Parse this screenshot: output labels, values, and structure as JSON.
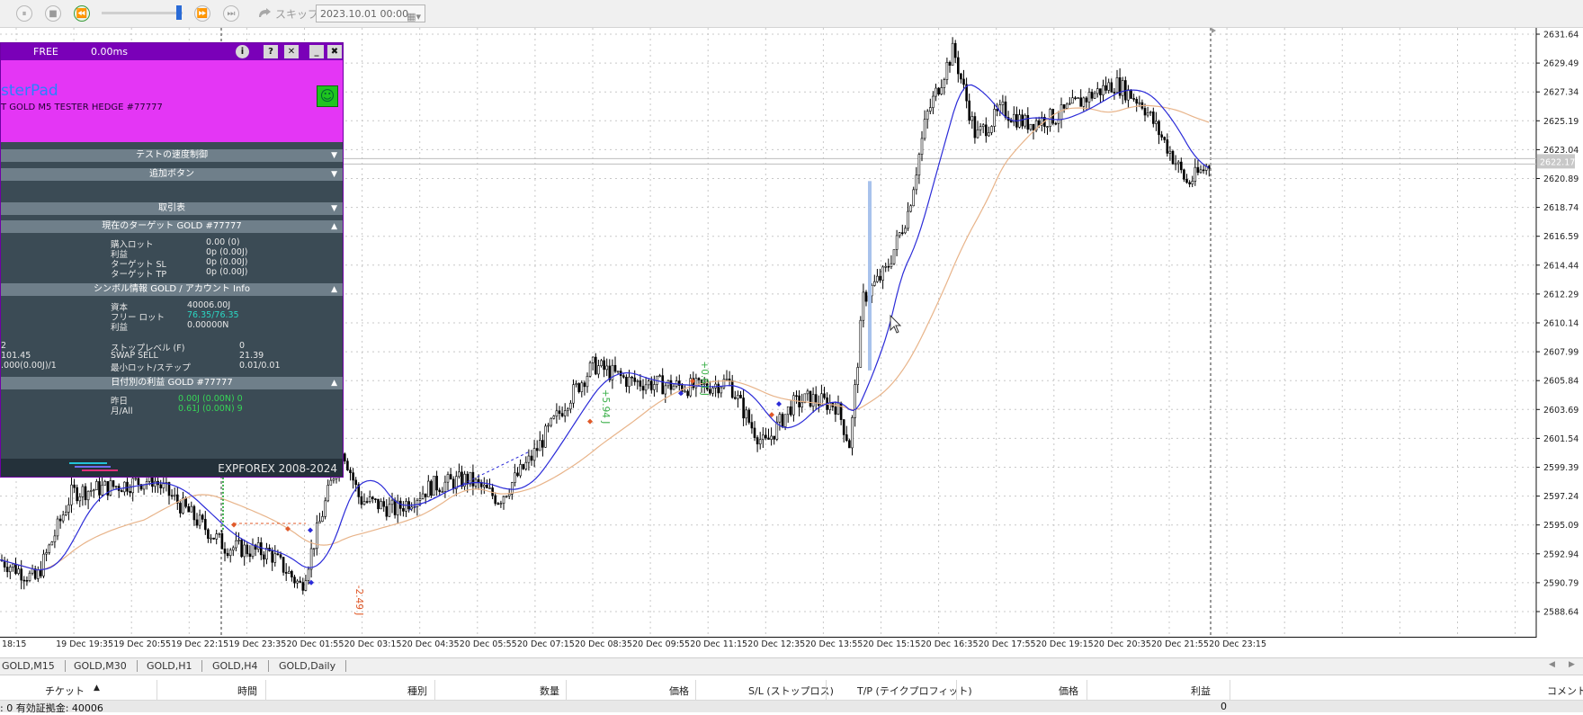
{
  "toolbar": {
    "skip_label": "スキップ",
    "date_value": "2023.10.01 00:00"
  },
  "panel": {
    "status": "FREE",
    "latency": "0.00ms",
    "title_fragment": "sterPad",
    "subtitle_fragment": "T GOLD M5 TESTER HEDGE  #77777",
    "brand": "EXPFOREX 2008-2024",
    "sections": {
      "test_control": "テストの速度制御",
      "extra_buttons": "追加ボタン",
      "trade_table": "取引表",
      "current_target": "現在のターゲット GOLD  #77777",
      "symbol_info": "シンボル情報 GOLD / アカウント Info",
      "daily_profit": "日付別の利益 GOLD  #77777"
    },
    "target_rows": [
      {
        "label": "購入ロット",
        "value": "0.00 (0)"
      },
      {
        "label": "利益",
        "value": "0p (0.00J)"
      },
      {
        "label": "ターゲット SL",
        "value": "0p (0.00J)"
      },
      {
        "label": "ターゲット TP",
        "value": "0p (0.00J)"
      }
    ],
    "account_rows": [
      {
        "label": "資本",
        "value": "40006.00J"
      },
      {
        "label": "フリー ロット",
        "value": "76.35/76.35"
      },
      {
        "label": "利益",
        "value": "0.00000N"
      }
    ],
    "symbol_rows": [
      {
        "left": "2",
        "label": "ストップレベル (F)",
        "value": "0"
      },
      {
        "left": "101.45",
        "label": "SWAP SELL",
        "value": "21.39"
      },
      {
        "left": ".000(0.00J)/1",
        "label": "最小ロット/ステップ",
        "value": "0.01/0.01"
      }
    ],
    "daily_rows": [
      {
        "label": "昨日",
        "value": "0.00J (0.00N) 0"
      },
      {
        "label": "月/All",
        "value": "0.61J (0.00N) 9"
      }
    ]
  },
  "chart": {
    "price_ticks": [
      "2631.64",
      "2629.49",
      "2627.34",
      "2625.19",
      "2623.04",
      "2620.89",
      "2618.74",
      "2616.59",
      "2614.44",
      "2612.29",
      "2610.14",
      "2607.99",
      "2605.84",
      "2603.69",
      "2601.54",
      "2599.39",
      "2597.24",
      "2595.09",
      "2592.94",
      "2590.79",
      "2588.64"
    ],
    "current_price_label": "2622.17",
    "time_labels": [
      "18:15",
      "19 Dec 19:35",
      "19 Dec 20:55",
      "19 Dec 22:15",
      "19 Dec 23:35",
      "20 Dec 01:55",
      "20 Dec 03:15",
      "20 Dec 04:35",
      "20 Dec 05:55",
      "20 Dec 07:15",
      "20 Dec 08:35",
      "20 Dec 09:55",
      "20 Dec 11:15",
      "20 Dec 12:35",
      "20 Dec 13:55",
      "20 Dec 15:15",
      "20 Dec 16:35",
      "20 Dec 17:55",
      "20 Dec 19:15",
      "20 Dec 20:35",
      "20 Dec 21:55",
      "20 Dec 23:15"
    ],
    "annotations": [
      {
        "text": "-2.49 J",
        "color": "#e05a2a"
      },
      {
        "text": "+5.94 J",
        "color": "#3cb04a"
      },
      {
        "text": "+0.61 J",
        "color": "#3cb04a"
      }
    ],
    "colors": {
      "candles": "#000000",
      "fast_ma": "#2b2bd8",
      "slow_ma": "#e8b48a",
      "grid": "#c8c8c8"
    }
  },
  "tabs": [
    "GOLD,M15",
    "GOLD,M30",
    "GOLD,H1",
    "GOLD,H4",
    "GOLD,Daily"
  ],
  "table": {
    "headers": [
      "チケット",
      "時間",
      "種別",
      "数量",
      "価格",
      "S/L (ストップロス)",
      "T/P (テイクプロフィット)",
      "価格",
      "利益",
      "コメント"
    ],
    "footer_left": ": 0  有効証拠金: 40006",
    "footer_profit": "0"
  }
}
